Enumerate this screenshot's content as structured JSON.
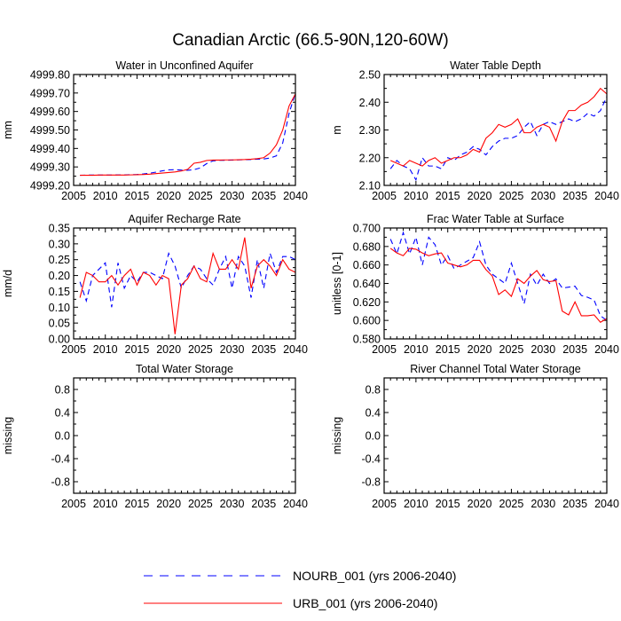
{
  "figure": {
    "title": "Canadian Arctic (66.5-90N,120-60W)"
  },
  "colors": {
    "urb": "#ff0000",
    "nourb": "#0000ff",
    "frame": "#000000",
    "background": "#ffffff"
  },
  "legend": {
    "entries": [
      {
        "series": "NOURB_001",
        "label": "NOURB_001 (yrs 2006-2040)",
        "style": "dashed",
        "color": "#0000ff"
      },
      {
        "series": "URB_001",
        "label": "URB_001 (yrs 2006-2040)",
        "style": "solid",
        "color": "#ff0000"
      }
    ]
  },
  "chart_data": [
    {
      "type": "line",
      "title": "Water in Unconfined Aquifer",
      "ylabel": "mm",
      "xlim": [
        2005,
        2040
      ],
      "ylim": [
        4999.2,
        4999.8
      ],
      "xticks": [
        2005,
        2010,
        2015,
        2020,
        2025,
        2030,
        2035,
        2040
      ],
      "xtick_labels": [
        "2005",
        "2010",
        "2015",
        "2020",
        "2025",
        "2030",
        "2035",
        "2040"
      ],
      "yticks": [
        4999.2,
        4999.3,
        4999.4,
        4999.5,
        4999.6,
        4999.7,
        4999.8
      ],
      "ytick_labels": [
        "4999.20",
        "4999.30",
        "4999.40",
        "4999.50",
        "4999.60",
        "4999.70",
        "4999.80"
      ],
      "x": [
        2006,
        2007,
        2008,
        2009,
        2010,
        2011,
        2012,
        2013,
        2014,
        2015,
        2016,
        2017,
        2018,
        2019,
        2020,
        2021,
        2022,
        2023,
        2024,
        2025,
        2026,
        2027,
        2028,
        2029,
        2030,
        2031,
        2032,
        2033,
        2034,
        2035,
        2036,
        2037,
        2038,
        2039,
        2040
      ],
      "series": [
        {
          "name": "NOURB_001",
          "values": [
            4999.255,
            4999.256,
            4999.256,
            4999.256,
            4999.256,
            4999.256,
            4999.257,
            4999.257,
            4999.258,
            4999.259,
            4999.262,
            4999.266,
            4999.272,
            4999.279,
            4999.284,
            4999.285,
            4999.283,
            4999.282,
            4999.285,
            4999.295,
            4999.318,
            4999.333,
            4999.336,
            4999.336,
            4999.337,
            4999.338,
            4999.339,
            4999.34,
            4999.342,
            4999.343,
            4999.348,
            4999.36,
            4999.43,
            4999.59,
            4999.7
          ]
        },
        {
          "name": "URB_001",
          "values": [
            4999.255,
            4999.255,
            4999.255,
            4999.256,
            4999.256,
            4999.256,
            4999.256,
            4999.256,
            4999.257,
            4999.258,
            4999.259,
            4999.261,
            4999.264,
            4999.267,
            4999.27,
            4999.273,
            4999.278,
            4999.287,
            4999.32,
            4999.325,
            4999.335,
            4999.337,
            4999.337,
            4999.338,
            4999.338,
            4999.339,
            4999.34,
            4999.342,
            4999.345,
            4999.35,
            4999.375,
            4999.42,
            4999.5,
            4999.63,
            4999.695
          ]
        }
      ]
    },
    {
      "type": "line",
      "title": "Water Table Depth",
      "ylabel": "m",
      "xlim": [
        2005,
        2040
      ],
      "ylim": [
        2.1,
        2.5
      ],
      "xticks": [
        2005,
        2010,
        2015,
        2020,
        2025,
        2030,
        2035,
        2040
      ],
      "xtick_labels": [
        "2005",
        "2010",
        "2015",
        "2020",
        "2025",
        "2030",
        "2035",
        "2040"
      ],
      "yticks": [
        2.1,
        2.2,
        2.3,
        2.4,
        2.5
      ],
      "ytick_labels": [
        "2.10",
        "2.20",
        "2.30",
        "2.40",
        "2.50"
      ],
      "x": [
        2006,
        2007,
        2008,
        2009,
        2010,
        2011,
        2012,
        2013,
        2014,
        2015,
        2016,
        2017,
        2018,
        2019,
        2020,
        2021,
        2022,
        2023,
        2024,
        2025,
        2026,
        2027,
        2028,
        2029,
        2030,
        2031,
        2032,
        2033,
        2034,
        2035,
        2036,
        2037,
        2038,
        2039,
        2040
      ],
      "series": [
        {
          "name": "NOURB_001",
          "values": [
            2.16,
            2.19,
            2.17,
            2.16,
            2.12,
            2.2,
            2.17,
            2.17,
            2.16,
            2.2,
            2.19,
            2.21,
            2.22,
            2.24,
            2.23,
            2.21,
            2.24,
            2.26,
            2.27,
            2.27,
            2.28,
            2.31,
            2.33,
            2.28,
            2.32,
            2.33,
            2.32,
            2.33,
            2.34,
            2.33,
            2.34,
            2.36,
            2.35,
            2.37,
            2.42
          ]
        },
        {
          "name": "URB_001",
          "values": [
            2.19,
            2.18,
            2.17,
            2.19,
            2.18,
            2.17,
            2.19,
            2.2,
            2.18,
            2.19,
            2.2,
            2.2,
            2.21,
            2.23,
            2.22,
            2.27,
            2.29,
            2.32,
            2.31,
            2.32,
            2.34,
            2.29,
            2.29,
            2.31,
            2.32,
            2.31,
            2.26,
            2.33,
            2.37,
            2.37,
            2.39,
            2.4,
            2.42,
            2.45,
            2.43
          ]
        }
      ]
    },
    {
      "type": "line",
      "title": "Aquifer Recharge Rate",
      "ylabel": "mm/d",
      "xlim": [
        2005,
        2040
      ],
      "ylim": [
        0.0,
        0.35
      ],
      "xticks": [
        2005,
        2010,
        2015,
        2020,
        2025,
        2030,
        2035,
        2040
      ],
      "xtick_labels": [
        "2005",
        "2010",
        "2015",
        "2020",
        "2025",
        "2030",
        "2035",
        "2040"
      ],
      "yticks": [
        0.0,
        0.05,
        0.1,
        0.15,
        0.2,
        0.25,
        0.3,
        0.35
      ],
      "ytick_labels": [
        "0.00",
        "0.05",
        "0.10",
        "0.15",
        "0.20",
        "0.25",
        "0.30",
        "0.35"
      ],
      "x": [
        2006,
        2007,
        2008,
        2009,
        2010,
        2011,
        2012,
        2013,
        2014,
        2015,
        2016,
        2017,
        2018,
        2019,
        2020,
        2021,
        2022,
        2023,
        2024,
        2025,
        2026,
        2027,
        2028,
        2029,
        2030,
        2031,
        2032,
        2033,
        2034,
        2035,
        2036,
        2037,
        2038,
        2039,
        2040
      ],
      "series": [
        {
          "name": "NOURB_001",
          "values": [
            0.18,
            0.12,
            0.2,
            0.22,
            0.24,
            0.1,
            0.24,
            0.16,
            0.2,
            0.18,
            0.21,
            0.21,
            0.2,
            0.19,
            0.27,
            0.23,
            0.16,
            0.2,
            0.23,
            0.22,
            0.19,
            0.17,
            0.22,
            0.26,
            0.16,
            0.26,
            0.23,
            0.13,
            0.25,
            0.16,
            0.27,
            0.21,
            0.26,
            0.26,
            0.25
          ]
        },
        {
          "name": "URB_001",
          "values": [
            0.13,
            0.21,
            0.2,
            0.18,
            0.18,
            0.2,
            0.17,
            0.2,
            0.22,
            0.17,
            0.21,
            0.2,
            0.17,
            0.2,
            0.19,
            0.015,
            0.17,
            0.19,
            0.23,
            0.19,
            0.18,
            0.27,
            0.22,
            0.22,
            0.25,
            0.22,
            0.32,
            0.16,
            0.23,
            0.25,
            0.23,
            0.2,
            0.25,
            0.22,
            0.21
          ]
        }
      ]
    },
    {
      "type": "line",
      "title": "Frac Water Table at Surface",
      "ylabel": "unitless [0-1]",
      "xlim": [
        2005,
        2040
      ],
      "ylim": [
        0.58,
        0.7
      ],
      "xticks": [
        2005,
        2010,
        2015,
        2020,
        2025,
        2030,
        2035,
        2040
      ],
      "xtick_labels": [
        "2005",
        "2010",
        "2015",
        "2020",
        "2025",
        "2030",
        "2035",
        "2040"
      ],
      "yticks": [
        0.58,
        0.6,
        0.62,
        0.64,
        0.66,
        0.68,
        0.7
      ],
      "ytick_labels": [
        "0.580",
        "0.600",
        "0.620",
        "0.640",
        "0.660",
        "0.680",
        "0.700"
      ],
      "x": [
        2006,
        2007,
        2008,
        2009,
        2010,
        2011,
        2012,
        2013,
        2014,
        2015,
        2016,
        2017,
        2018,
        2019,
        2020,
        2021,
        2022,
        2023,
        2024,
        2025,
        2026,
        2027,
        2028,
        2029,
        2030,
        2031,
        2032,
        2033,
        2034,
        2035,
        2036,
        2037,
        2038,
        2039,
        2040
      ],
      "series": [
        {
          "name": "NOURB_001",
          "values": [
            0.688,
            0.672,
            0.695,
            0.672,
            0.69,
            0.66,
            0.69,
            0.682,
            0.66,
            0.67,
            0.656,
            0.66,
            0.664,
            0.668,
            0.685,
            0.66,
            0.65,
            0.645,
            0.64,
            0.662,
            0.64,
            0.618,
            0.65,
            0.638,
            0.65,
            0.64,
            0.645,
            0.635,
            0.636,
            0.637,
            0.627,
            0.625,
            0.622,
            0.605,
            0.6
          ]
        },
        {
          "name": "URB_001",
          "values": [
            0.678,
            0.673,
            0.67,
            0.678,
            0.677,
            0.673,
            0.67,
            0.672,
            0.673,
            0.662,
            0.66,
            0.658,
            0.66,
            0.665,
            0.665,
            0.655,
            0.648,
            0.628,
            0.633,
            0.626,
            0.645,
            0.64,
            0.648,
            0.654,
            0.644,
            0.642,
            0.643,
            0.61,
            0.606,
            0.62,
            0.605,
            0.605,
            0.606,
            0.598,
            0.602
          ]
        }
      ]
    },
    {
      "type": "line",
      "title": "Total Water Storage",
      "ylabel": "missing",
      "xlim": [
        2005,
        2040
      ],
      "ylim": [
        -1.0,
        1.0
      ],
      "xticks": [
        2005,
        2010,
        2015,
        2020,
        2025,
        2030,
        2035,
        2040
      ],
      "xtick_labels": [
        "2005",
        "2010",
        "2015",
        "2020",
        "2025",
        "2030",
        "2035",
        "2040"
      ],
      "yticks": [
        -0.8,
        -0.4,
        0.0,
        0.4,
        0.8
      ],
      "ytick_labels": [
        "-0.8",
        "-0.4",
        "0.0",
        "0.4",
        "0.8"
      ],
      "x": [],
      "series": []
    },
    {
      "type": "line",
      "title": "River Channel Total Water Storage",
      "ylabel": "missing",
      "xlim": [
        2005,
        2040
      ],
      "ylim": [
        -1.0,
        1.0
      ],
      "xticks": [
        2005,
        2010,
        2015,
        2020,
        2025,
        2030,
        2035,
        2040
      ],
      "xtick_labels": [
        "2005",
        "2010",
        "2015",
        "2020",
        "2025",
        "2030",
        "2035",
        "2040"
      ],
      "yticks": [
        -0.8,
        -0.4,
        0.0,
        0.4,
        0.8
      ],
      "ytick_labels": [
        "-0.8",
        "-0.4",
        "0.0",
        "0.4",
        "0.8"
      ],
      "x": [],
      "series": []
    }
  ]
}
